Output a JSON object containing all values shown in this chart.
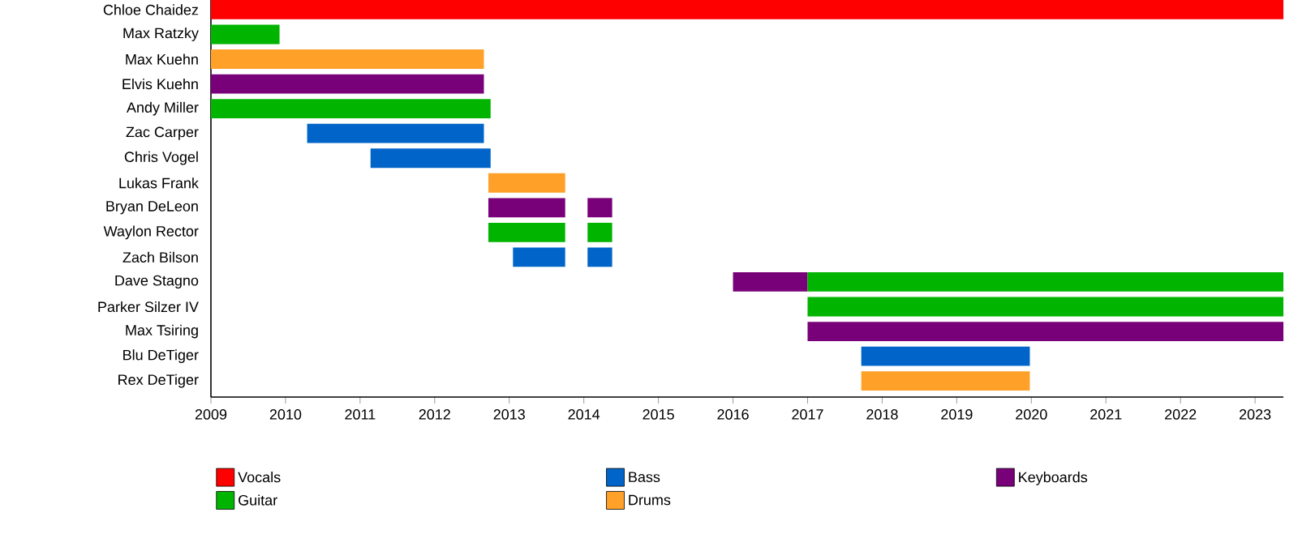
{
  "chart_data": {
    "type": "bar",
    "orientation": "horizontal",
    "categories": [
      "Chloe Chaidez",
      "Max Ratzky",
      "Max Kuehn",
      "Elvis Kuehn",
      "Andy Miller",
      "Zac Carper",
      "Chris Vogel",
      "Lukas Frank",
      "Bryan DeLeon",
      "Waylon Rector",
      "Zach Bilson",
      "Dave Stagno",
      "Parker Silzer IV",
      "Max Tsiring",
      "Blu DeTiger",
      "Rex DeTiger"
    ],
    "series": [
      {
        "name": "Vocals",
        "color": "#ff0000",
        "base": [
          2009,
          null,
          null,
          null,
          null,
          null,
          null,
          null,
          null,
          null,
          null,
          null,
          null,
          null,
          null,
          null
        ],
        "values": [
          14.38,
          null,
          null,
          null,
          null,
          null,
          null,
          null,
          null,
          null,
          null,
          null,
          null,
          null,
          null,
          null
        ]
      },
      {
        "name": "Bass",
        "color": "#0064c8",
        "base": [
          null,
          null,
          null,
          null,
          null,
          2010.29,
          2011.14,
          null,
          null,
          null,
          2013.05,
          null,
          null,
          null,
          2017.72,
          null
        ],
        "values": [
          null,
          null,
          null,
          null,
          null,
          2.37,
          1.61,
          null,
          null,
          null,
          0.7,
          null,
          null,
          null,
          2.26,
          null
        ]
      },
      {
        "name": "Keyboards",
        "color": "#780078",
        "base": [
          null,
          null,
          null,
          2009,
          null,
          null,
          null,
          null,
          2012.72,
          null,
          null,
          2016,
          null,
          2017,
          null,
          null
        ],
        "values": [
          null,
          null,
          null,
          3.66,
          null,
          null,
          null,
          null,
          1.03,
          null,
          null,
          1.0,
          null,
          6.38,
          null,
          null
        ]
      },
      {
        "name": "Guitar",
        "color": "#00b400",
        "base": [
          null,
          2009,
          null,
          null,
          2009,
          null,
          null,
          null,
          null,
          2012.72,
          null,
          2017,
          2017,
          null,
          null,
          null
        ],
        "values": [
          null,
          0.92,
          null,
          null,
          3.75,
          null,
          null,
          null,
          null,
          1.03,
          null,
          6.38,
          6.38,
          null,
          null,
          null
        ]
      },
      {
        "name": "Drums",
        "color": "#ffa028",
        "base": [
          null,
          null,
          2009,
          null,
          null,
          null,
          null,
          2012.72,
          null,
          null,
          null,
          null,
          null,
          null,
          null,
          2017.72
        ],
        "values": [
          null,
          null,
          3.66,
          null,
          null,
          null,
          null,
          1.03,
          null,
          null,
          null,
          null,
          null,
          null,
          null,
          2.26
        ]
      },
      {
        "color": "#780078",
        "base": [
          null,
          null,
          null,
          null,
          null,
          null,
          null,
          null,
          2014.05,
          null,
          null,
          null,
          null,
          null,
          null,
          null
        ],
        "values": [
          null,
          null,
          null,
          null,
          null,
          null,
          null,
          null,
          0.33,
          null,
          null,
          null,
          null,
          null,
          null,
          null
        ]
      },
      {
        "color": "#00b400",
        "base": [
          null,
          null,
          null,
          null,
          null,
          null,
          null,
          null,
          null,
          2014.05,
          null,
          null,
          null,
          null,
          null,
          null
        ],
        "values": [
          null,
          null,
          null,
          null,
          null,
          null,
          null,
          null,
          null,
          0.33,
          null,
          null,
          null,
          null,
          null,
          null
        ]
      },
      {
        "color": "#0064c8",
        "base": [
          null,
          null,
          null,
          null,
          null,
          null,
          null,
          null,
          null,
          null,
          2014.05,
          null,
          null,
          null,
          null,
          null
        ],
        "values": [
          null,
          null,
          null,
          null,
          null,
          null,
          null,
          null,
          null,
          null,
          0.33,
          null,
          null,
          null,
          null,
          null
        ]
      }
    ],
    "xlim": [
      2009,
      2023.38
    ],
    "xticks": [
      2009,
      2010,
      2011,
      2012,
      2013,
      2014,
      2015,
      2016,
      2017,
      2018,
      2019,
      2020,
      2021,
      2022,
      2023
    ],
    "legend": "bottom"
  }
}
